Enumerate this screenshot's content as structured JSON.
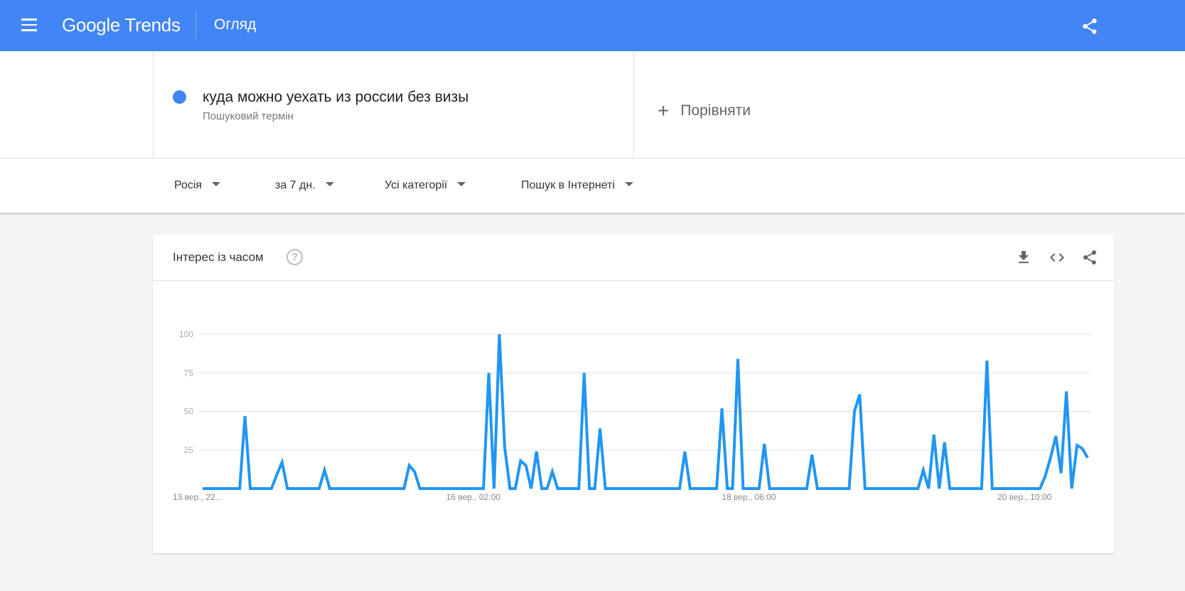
{
  "header": {
    "logo": "Google Trends",
    "title": "Огляд",
    "bg": "#4285f4"
  },
  "search": {
    "term": "куда можно уехать из россии без визы",
    "term_type": "Пошуковий термін",
    "term_color": "#4285f4",
    "compare_label": "Порівняти"
  },
  "filters": [
    {
      "label": "Росія"
    },
    {
      "label": "за 7 дн."
    },
    {
      "label": "Усі категорії"
    },
    {
      "label": "Пошук в Інтернеті"
    }
  ],
  "card": {
    "title": "Інтерес із часом",
    "icons": [
      "help-icon",
      "download-icon",
      "embed-code-icon",
      "share-icon"
    ]
  },
  "chart_data": {
    "type": "line",
    "ylim": [
      0,
      100
    ],
    "y_ticks": [
      "25",
      "50",
      "75",
      "100"
    ],
    "x_ticks": [
      "13 вер., 22...",
      "16 вер., 02:00",
      "18 вер., 06:00",
      "20 вер., 10:00"
    ],
    "grid": true,
    "color": "#2196f3",
    "values": [
      0,
      0,
      0,
      0,
      0,
      0,
      0,
      0,
      47,
      0,
      0,
      0,
      0,
      0,
      9,
      17,
      0,
      0,
      0,
      0,
      0,
      0,
      0,
      12,
      0,
      0,
      0,
      0,
      0,
      0,
      0,
      0,
      0,
      0,
      0,
      0,
      0,
      0,
      0,
      15,
      11,
      0,
      0,
      0,
      0,
      0,
      0,
      0,
      0,
      0,
      0,
      0,
      0,
      0,
      75,
      0,
      100,
      27,
      0,
      0,
      18,
      15,
      0,
      24,
      0,
      0,
      11,
      0,
      0,
      0,
      0,
      0,
      75,
      0,
      0,
      39,
      0,
      0,
      0,
      0,
      0,
      0,
      0,
      0,
      0,
      0,
      0,
      0,
      0,
      0,
      0,
      24,
      0,
      0,
      0,
      0,
      0,
      0,
      52,
      0,
      0,
      84,
      0,
      0,
      0,
      0,
      29,
      0,
      0,
      0,
      0,
      0,
      0,
      0,
      0,
      22,
      0,
      0,
      0,
      0,
      0,
      0,
      0,
      50,
      61,
      0,
      0,
      0,
      0,
      0,
      0,
      0,
      0,
      0,
      0,
      0,
      12,
      0,
      35,
      0,
      30,
      0,
      0,
      0,
      0,
      0,
      0,
      0,
      83,
      0,
      0,
      0,
      0,
      0,
      0,
      0,
      0,
      0,
      0,
      8,
      20,
      34,
      10,
      63,
      0,
      28,
      26,
      20
    ]
  }
}
